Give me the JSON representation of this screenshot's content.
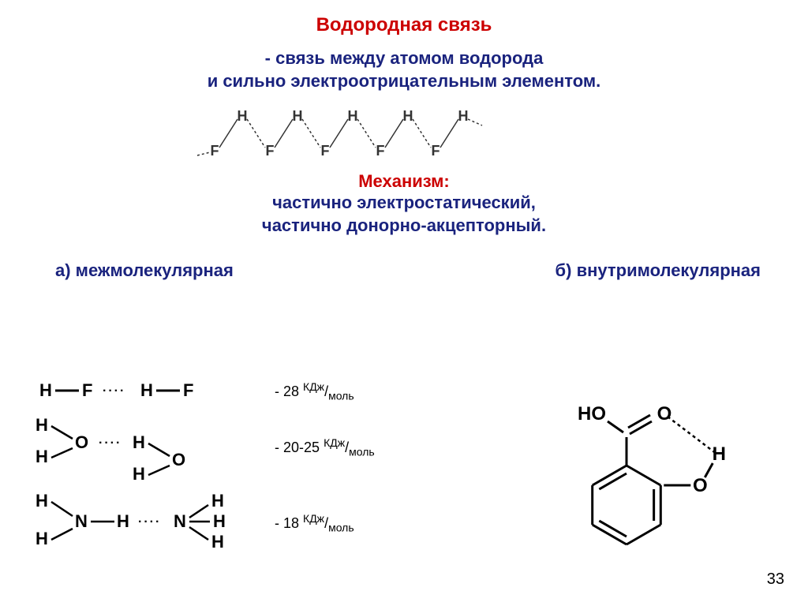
{
  "colors": {
    "red": "#cc0000",
    "navy": "#1a237e",
    "black": "#000000",
    "gray": "#555555"
  },
  "title": "Водородная связь",
  "definition": {
    "line1": "- связь между атомом водорода",
    "line2": "и сильно электроотрицательным элементом."
  },
  "mechanism": {
    "label": "Механизм:",
    "line1": "частично  электростатический,",
    "line2": "частично  донорно-акцепторный."
  },
  "types": {
    "a": "а) межмолекулярная",
    "b": "б) внутримолекулярная"
  },
  "energies": {
    "hf": "- 28",
    "h2o": "- 20-25",
    "nh3": "- 18",
    "unit_top": "КДж",
    "unit_bot": "моль",
    "unit_slash": "/"
  },
  "atoms": {
    "H": "H",
    "F": "F",
    "O": "O",
    "N": "N",
    "HO": "HO"
  },
  "page": "33",
  "chain": {
    "n_units": 4,
    "xstep": 100,
    "ytop": 18,
    "ybot": 62,
    "font": 18,
    "stroke": "#333333"
  },
  "salicylic": {
    "stroke": "#000000",
    "stroke_width": 3,
    "font": 24,
    "font_weight": "bold"
  }
}
